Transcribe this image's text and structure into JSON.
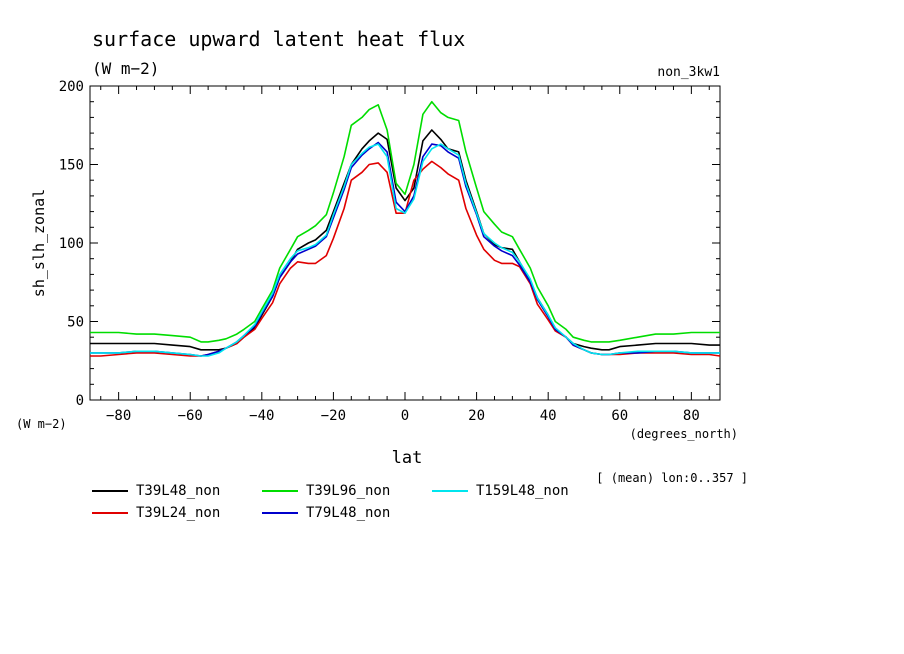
{
  "chart_data": {
    "type": "line",
    "title": "surface upward latent heat flux",
    "subtitle": "(W m−2)",
    "run_label": "non_3kw1",
    "xlabel": "lat",
    "xunits": "(degrees_north)",
    "ylabel": "sh_slh_zonal",
    "yunits": "(W m−2)",
    "mean_note": "[ (mean) lon:0..357 ]",
    "xlim": [
      -88,
      88
    ],
    "ylim": [
      0,
      200
    ],
    "xticks": [
      -80,
      -60,
      -40,
      -20,
      0,
      20,
      40,
      60,
      80
    ],
    "xtick_labels": [
      "−80",
      "−60",
      "−40",
      "−20",
      "0",
      "20",
      "40",
      "60",
      "80"
    ],
    "yticks": [
      0,
      50,
      100,
      150,
      200
    ],
    "ytick_labels": [
      "0",
      "50",
      "100",
      "150",
      "200"
    ],
    "grid": false,
    "legend_position": "bottom-left, below axes",
    "x": [
      -88,
      -85,
      -80,
      -75,
      -70,
      -65,
      -60,
      -57,
      -55,
      -52,
      -50,
      -47,
      -45,
      -42,
      -40,
      -37,
      -35,
      -32,
      -30,
      -27,
      -25,
      -22,
      -20,
      -17,
      -15,
      -12,
      -10,
      -7.5,
      -5,
      -2.5,
      0,
      2.5,
      5,
      7.5,
      10,
      12,
      15,
      17,
      20,
      22,
      25,
      27,
      30,
      32,
      35,
      37,
      40,
      42,
      45,
      47,
      50,
      52,
      55,
      57,
      60,
      65,
      70,
      75,
      80,
      85,
      88
    ],
    "series": [
      {
        "name": "T39L48_non",
        "color": "#000000",
        "values": [
          36,
          36,
          36,
          36,
          36,
          35,
          34,
          32,
          32,
          32,
          33,
          36,
          40,
          46,
          54,
          66,
          78,
          88,
          96,
          100,
          102,
          108,
          120,
          138,
          150,
          160,
          165,
          170,
          166,
          135,
          127,
          135,
          165,
          172,
          166,
          160,
          158,
          140,
          120,
          106,
          99,
          97,
          96,
          88,
          76,
          65,
          54,
          45,
          40,
          36,
          34,
          33,
          32,
          32,
          34,
          35,
          36,
          36,
          36,
          35,
          35
        ]
      },
      {
        "name": "T39L24_non",
        "color": "#e00000",
        "values": [
          28,
          28,
          29,
          30,
          30,
          29,
          28,
          28,
          29,
          31,
          33,
          36,
          40,
          45,
          52,
          62,
          74,
          84,
          88,
          87,
          87,
          92,
          103,
          122,
          140,
          145,
          150,
          151,
          145,
          119,
          119,
          140,
          147,
          152,
          148,
          144,
          140,
          122,
          105,
          96,
          89,
          87,
          87,
          85,
          74,
          61,
          51,
          44,
          40,
          35,
          32,
          30,
          29,
          29,
          29,
          30,
          30,
          30,
          29,
          29,
          28
        ]
      },
      {
        "name": "T39L96_non",
        "color": "#00dd00",
        "values": [
          43,
          43,
          43,
          42,
          42,
          41,
          40,
          37,
          37,
          38,
          39,
          42,
          45,
          50,
          58,
          70,
          84,
          96,
          104,
          108,
          111,
          118,
          132,
          155,
          175,
          180,
          185,
          188,
          172,
          138,
          131,
          150,
          182,
          190,
          183,
          180,
          178,
          158,
          135,
          120,
          112,
          107,
          104,
          96,
          84,
          72,
          60,
          50,
          45,
          40,
          38,
          37,
          37,
          37,
          38,
          40,
          42,
          42,
          43,
          43,
          43
        ]
      },
      {
        "name": "T79L48_non",
        "color": "#0000cc",
        "values": [
          30,
          30,
          30,
          31,
          31,
          30,
          29,
          28,
          29,
          31,
          33,
          37,
          41,
          47,
          55,
          66,
          78,
          88,
          93,
          96,
          98,
          104,
          116,
          134,
          148,
          156,
          160,
          164,
          158,
          126,
          120,
          130,
          155,
          163,
          162,
          158,
          154,
          136,
          118,
          104,
          98,
          95,
          92,
          86,
          75,
          64,
          53,
          45,
          40,
          35,
          32,
          30,
          29,
          29,
          30,
          30,
          31,
          31,
          30,
          30,
          30
        ]
      },
      {
        "name": "T159L48_non",
        "color": "#00e5ee",
        "values": [
          30,
          30,
          30,
          31,
          31,
          30,
          29,
          28,
          28,
          30,
          33,
          37,
          41,
          48,
          56,
          68,
          80,
          90,
          95,
          97,
          99,
          105,
          118,
          136,
          150,
          157,
          161,
          163,
          155,
          122,
          119,
          128,
          152,
          160,
          163,
          160,
          156,
          138,
          119,
          106,
          100,
          97,
          94,
          88,
          77,
          65,
          54,
          46,
          40,
          36,
          32,
          30,
          29,
          29,
          30,
          31,
          31,
          31,
          30,
          30,
          30
        ]
      }
    ]
  }
}
